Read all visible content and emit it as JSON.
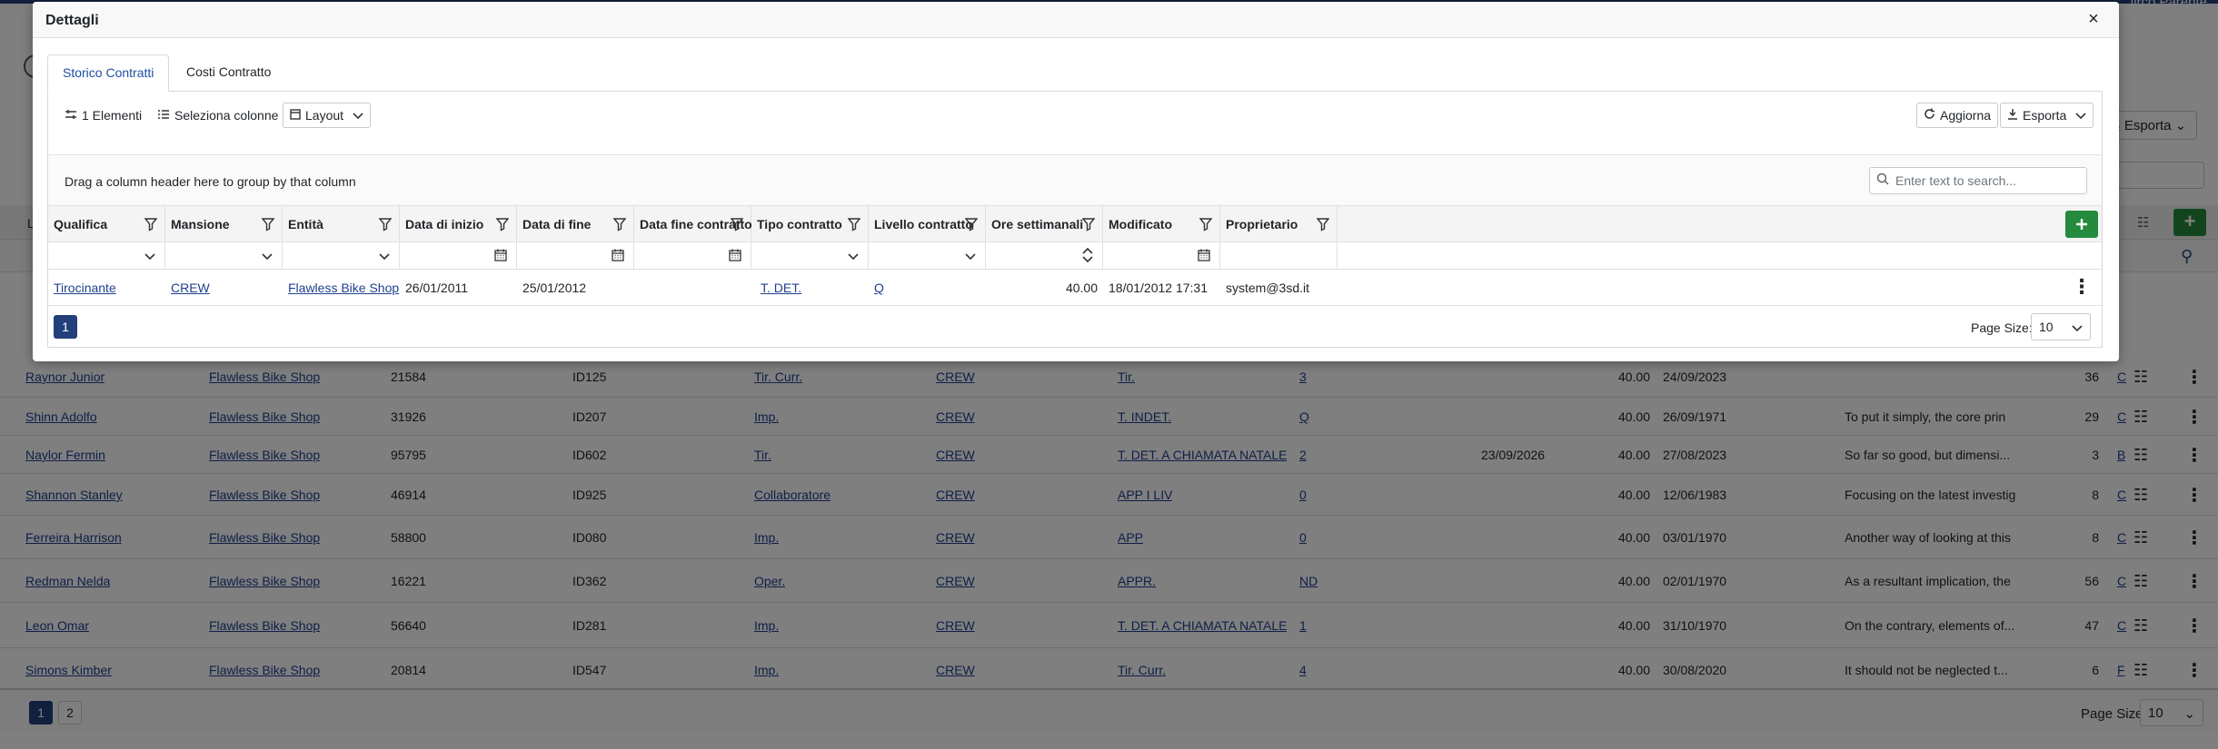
{
  "background": {
    "user_name_partial": "lirco Parente",
    "esporta_label": "Esporta",
    "partial_header_letter": "L",
    "rows": [
      {
        "name": "Raynor Junior",
        "entity": "Flawless Bike Shop",
        "code": "21584",
        "id": "ID125",
        "qualifica": "Tir. Curr.",
        "mansione": "CREW",
        "tipo": "Tir.",
        "livello": "3",
        "fine": "",
        "ore": "40.00",
        "modificato": "24/09/2023",
        "note": "",
        "count": "36",
        "trail": "C"
      },
      {
        "name": "Shinn Adolfo",
        "entity": "Flawless Bike Shop",
        "code": "31926",
        "id": "ID207",
        "qualifica": "Imp.",
        "mansione": "CREW",
        "tipo": "T. INDET.",
        "livello": "Q",
        "fine": "",
        "ore": "40.00",
        "modificato": "26/09/1971",
        "note": "To put it simply, the core prin",
        "count": "29",
        "trail": "C"
      },
      {
        "name": "Naylor Fermin",
        "entity": "Flawless Bike Shop",
        "code": "95795",
        "id": "ID602",
        "qualifica": "Tir.",
        "mansione": "CREW",
        "tipo": "T. DET. A CHIAMATA NATALE",
        "livello": "2",
        "fine": "23/09/2026",
        "ore": "40.00",
        "modificato": "27/08/2023",
        "note": "So far so good, but dimensi...",
        "count": "3",
        "trail": "B"
      },
      {
        "name": "Shannon Stanley",
        "entity": "Flawless Bike Shop",
        "code": "46914",
        "id": "ID925",
        "qualifica": "Collaboratore",
        "mansione": "CREW",
        "tipo": "APP I LIV",
        "livello": "0",
        "fine": "",
        "ore": "40.00",
        "modificato": "12/06/1983",
        "note": "Focusing on the latest investig",
        "count": "8",
        "trail": "C"
      },
      {
        "name": "Ferreira Harrison",
        "entity": "Flawless Bike Shop",
        "code": "58800",
        "id": "ID080",
        "qualifica": "Imp.",
        "mansione": "CREW",
        "tipo": "APP",
        "livello": "0",
        "fine": "",
        "ore": "40.00",
        "modificato": "03/01/1970",
        "note": "Another way of looking at this",
        "count": "8",
        "trail": "C"
      },
      {
        "name": "Redman Nelda",
        "entity": "Flawless Bike Shop",
        "code": "16221",
        "id": "ID362",
        "qualifica": "Oper.",
        "mansione": "CREW",
        "tipo": "APPR.",
        "livello": "ND",
        "fine": "",
        "ore": "40.00",
        "modificato": "02/01/1970",
        "note": "As a resultant implication, the",
        "count": "56",
        "trail": "C"
      },
      {
        "name": "Leon Omar",
        "entity": "Flawless Bike Shop",
        "code": "56640",
        "id": "ID281",
        "qualifica": "Imp.",
        "mansione": "CREW",
        "tipo": "T. DET. A CHIAMATA NATALE",
        "livello": "1",
        "fine": "",
        "ore": "40.00",
        "modificato": "31/10/1970",
        "note": "On the contrary, elements of...",
        "count": "47",
        "trail": "C"
      },
      {
        "name": "Simons Kimber",
        "entity": "Flawless Bike Shop",
        "code": "20814",
        "id": "ID547",
        "qualifica": "Imp.",
        "mansione": "CREW",
        "tipo": "Tir. Curr.",
        "livello": "4",
        "fine": "",
        "ore": "40.00",
        "modificato": "30/08/2020",
        "note": "It should not be neglected t...",
        "count": "6",
        "trail": "F"
      }
    ],
    "pages": [
      "1",
      "2"
    ],
    "page_size_label": "Page Size:",
    "page_size_value": "10"
  },
  "modal": {
    "title": "Dettagli",
    "close_icon": "close-icon",
    "tabs": [
      {
        "label": "Storico Contratti",
        "active": true
      },
      {
        "label": "Costi Contratto",
        "active": false
      }
    ],
    "toolbar": {
      "elements_label": "1 Elementi",
      "select_columns_label": "Seleziona colonne",
      "layout_label": "Layout",
      "refresh_label": "Aggiorna",
      "export_label": "Esporta"
    },
    "group_bar_text": "Drag a column header here to group by that column",
    "search": {
      "placeholder": "Enter text to search..."
    },
    "columns": [
      {
        "label": "Qualifica",
        "filter": "dropdown"
      },
      {
        "label": "Mansione",
        "filter": "dropdown"
      },
      {
        "label": "Entità",
        "filter": "dropdown"
      },
      {
        "label": "Data di inizio",
        "filter": "calendar"
      },
      {
        "label": "Data di fine",
        "filter": "calendar"
      },
      {
        "label": "Data fine contratto",
        "filter": "calendar"
      },
      {
        "label": "Tipo contratto",
        "filter": "dropdown"
      },
      {
        "label": "Livello contratto",
        "filter": "dropdown"
      },
      {
        "label": "Ore settimanali",
        "filter": "spin"
      },
      {
        "label": "Modificato",
        "filter": "calendar"
      },
      {
        "label": "Proprietario",
        "filter": "none"
      }
    ],
    "rows": [
      {
        "qualifica": "Tirocinante",
        "mansione": "CREW",
        "entita": "Flawless Bike Shop",
        "data_inizio": "26/01/2011",
        "data_fine": "25/01/2012",
        "data_fine_contratto": "",
        "tipo_contratto": "T. DET.",
        "livello_contratto": "Q",
        "ore_settimanali": "40.00",
        "modificato": "18/01/2012 17:31",
        "proprietario": "system@3sd.it"
      }
    ],
    "pager": {
      "current": "1",
      "page_size_label": "Page Size:",
      "page_size_value": "10"
    },
    "colors": {
      "primary": "#23407c",
      "success": "#248a3d",
      "link": "#1f3f8f"
    }
  }
}
